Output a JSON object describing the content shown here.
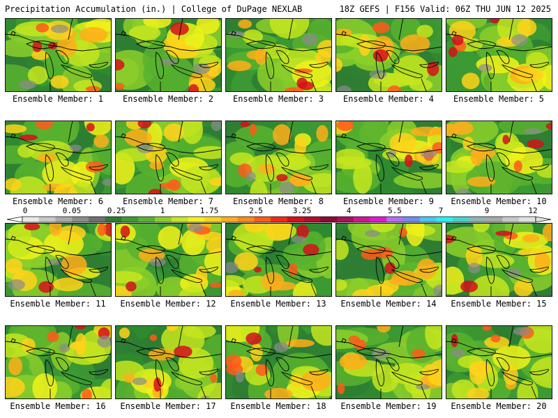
{
  "header": {
    "title": "Precipitation Accumulation (in.) | College of DuPage NEXLAB",
    "run_info": "18Z GEFS | F156 Valid: 06Z THU JUN 12 2025"
  },
  "members": [
    "Ensemble Member: 1",
    "Ensemble Member: 2",
    "Ensemble Member: 3",
    "Ensemble Member: 4",
    "Ensemble Member: 5",
    "Ensemble Member: 6",
    "Ensemble Member: 7",
    "Ensemble Member: 8",
    "Ensemble Member: 9",
    "Ensemble Member: 10",
    "Ensemble Member: 11",
    "Ensemble Member: 12",
    "Ensemble Member: 13",
    "Ensemble Member: 14",
    "Ensemble Member: 15",
    "Ensemble Member: 16",
    "Ensemble Member: 17",
    "Ensemble Member: 18",
    "Ensemble Member: 19",
    "Ensemble Member: 20"
  ],
  "colorbar": {
    "labels": [
      "0",
      "0.05",
      "0.25",
      "1",
      "1.75",
      "2.5",
      "3.25",
      "4",
      "5.5",
      "7",
      "9",
      "12"
    ],
    "colors": [
      "#e8e8e8",
      "#c8c8c8",
      "#a8a8a8",
      "#8c8c8c",
      "#707070",
      "#2e7d32",
      "#3d9a33",
      "#58b22e",
      "#8ccf2a",
      "#c6e61e",
      "#f2f21a",
      "#ffd21a",
      "#ffae1a",
      "#ff8a1a",
      "#ff5a1a",
      "#f02a1a",
      "#d4101a",
      "#b00e2a",
      "#8a0a32",
      "#a8105a",
      "#cc1a8c",
      "#e01ad0",
      "#b46ef0",
      "#6e8cf0",
      "#46c8f0",
      "#28f0f0",
      "#46d2c8",
      "#8cb4b4",
      "#a8a8a8",
      "#c8c8c8",
      "#e0e0e0"
    ]
  }
}
